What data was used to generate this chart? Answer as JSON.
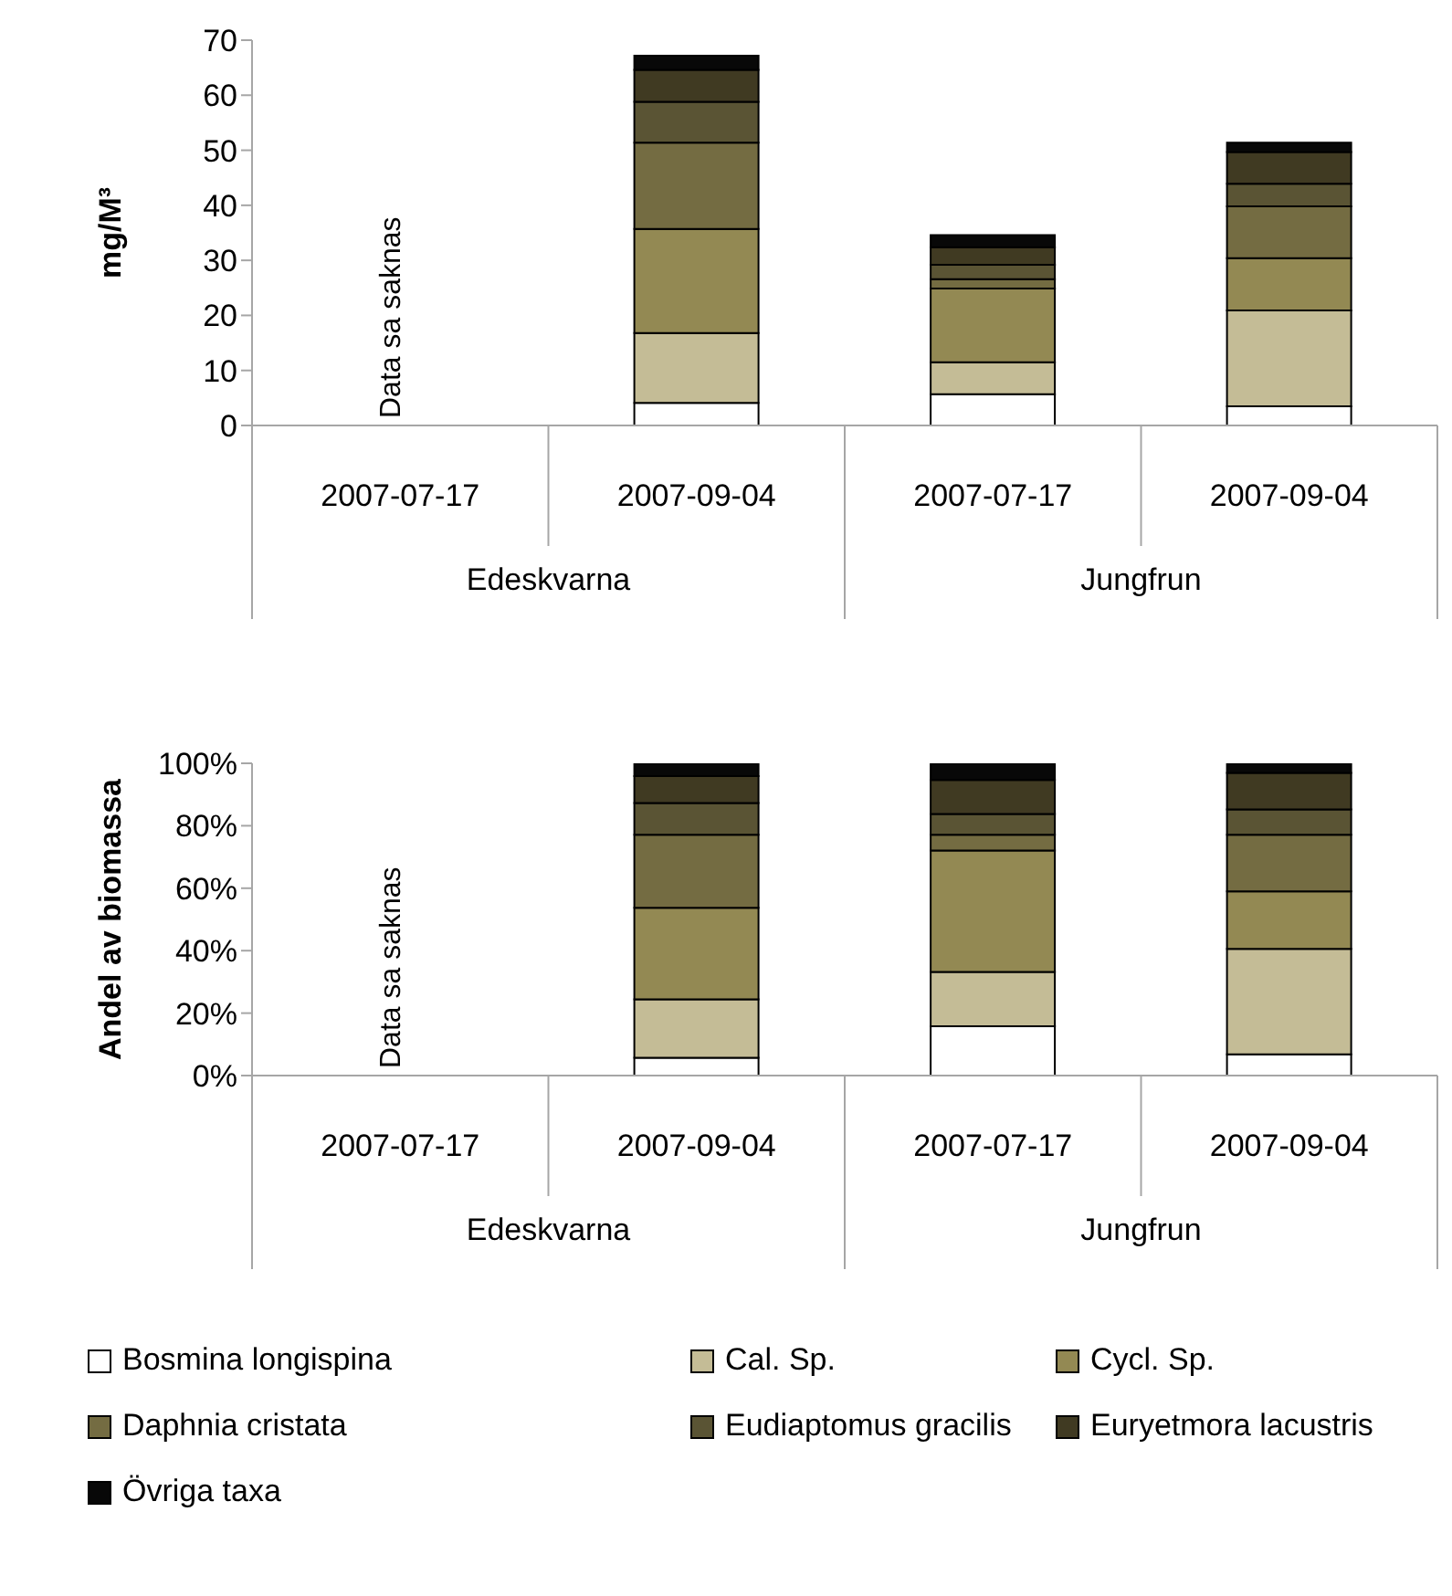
{
  "chart_data": [
    {
      "type": "bar",
      "stacked": true,
      "ylabel": "mg/M³",
      "categories": [
        "2007-07-17",
        "2007-09-04",
        "2007-07-17",
        "2007-09-04"
      ],
      "ylim": [
        0,
        70
      ],
      "yticks": [
        0,
        10,
        20,
        30,
        40,
        50,
        60,
        70
      ],
      "grid": false,
      "legend": false,
      "annotations": [
        "Data sa saknas",
        "Edeskvarna",
        "Jungfrun"
      ],
      "series": [
        {
          "color": "#ffffff",
          "values": [
            null,
            4.1,
            5.7,
            3.5
          ]
        },
        {
          "color": "#c4bc96",
          "values": [
            null,
            12.7,
            5.8,
            17.4
          ]
        },
        {
          "color": "#938953",
          "values": [
            null,
            18.9,
            13.4,
            9.5
          ]
        },
        {
          "color": "#746c42",
          "values": [
            null,
            15.7,
            1.7,
            9.4
          ]
        },
        {
          "color": "#5a5434",
          "values": [
            null,
            7.4,
            2.6,
            4.1
          ]
        },
        {
          "color": "#403a22",
          "values": [
            null,
            5.8,
            3.2,
            5.8
          ]
        },
        {
          "color": "#080808",
          "values": [
            null,
            2.6,
            2.2,
            1.7
          ]
        }
      ]
    },
    {
      "type": "bar",
      "stacked": true,
      "ylabel": "Andel av biomassa",
      "categories": [
        "2007-07-17",
        "2007-09-04",
        "2007-07-17",
        "2007-09-04"
      ],
      "ylim": [
        0,
        100
      ],
      "yticks": [
        {
          "value": 0,
          "label": "0%"
        },
        {
          "value": 20,
          "label": "20%"
        },
        {
          "value": 40,
          "label": "40%"
        },
        {
          "value": 60,
          "label": "60%"
        },
        {
          "value": 80,
          "label": "80%"
        },
        {
          "value": 100,
          "label": "100%"
        }
      ],
      "grid": false,
      "legend": "bottom",
      "annotations": [
        "Data sa saknas",
        "Edeskvarna",
        "Jungfrun"
      ],
      "series": [
        {
          "name": "Bosmina longispina",
          "color": "#ffffff",
          "values": [
            null,
            5.7,
            15.8,
            6.8
          ]
        },
        {
          "name": "Cal. Sp.",
          "color": "#c4bc96",
          "values": [
            null,
            18.7,
            17.4,
            33.8
          ]
        },
        {
          "name": "Cycl. Sp.",
          "color": "#938953",
          "values": [
            null,
            29.3,
            38.9,
            18.4
          ]
        },
        {
          "name": "Daphnia cristata",
          "color": "#746c42",
          "values": [
            null,
            23.4,
            5.0,
            18.1
          ]
        },
        {
          "name": "Eudiaptomus gracilis",
          "color": "#5a5434",
          "values": [
            null,
            10.2,
            6.7,
            8.1
          ]
        },
        {
          "name": "Euryetmora lacustris",
          "color": "#403a22",
          "values": [
            null,
            8.6,
            10.9,
            11.7
          ]
        },
        {
          "name": "Övriga taxa",
          "color": "#080808",
          "values": [
            null,
            4.1,
            5.3,
            3.1
          ]
        }
      ]
    }
  ]
}
